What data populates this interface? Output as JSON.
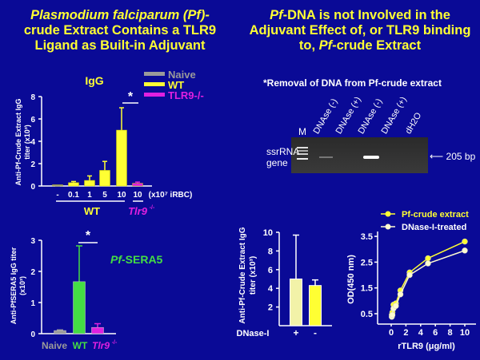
{
  "left_title": {
    "line1": "Plasmodium falciparum (Pf)-",
    "line2": "crude Extract Contains a TLR9",
    "line3": "Ligand as Built-in Adjuvant"
  },
  "right_title": {
    "line1_italic": "Pf",
    "line1": "-DNA is not Involved in the",
    "line2": "Adjuvant Effect of, or TLR9 binding",
    "line3_pre": "to, ",
    "line3_italic": "Pf",
    "line3": "-crude Extract"
  },
  "gel": {
    "title": "*Removal of DNA from Pf-crude extract",
    "lanes": [
      "M",
      "DNAse (-)",
      "DNAse (+)",
      "DNAse (-)",
      "DNAse (+)",
      "dH2O"
    ],
    "row_label_1": "ssrRNA",
    "row_label_2": "gene",
    "band_label": "205 bp"
  },
  "colors": {
    "bg": "#0a0a96",
    "yellow": "#ffff33",
    "grey": "#9a9a9a",
    "magenta": "#e020e0",
    "green": "#44dd44",
    "light_yellow": "#f2f2a8"
  },
  "chart_data": [
    {
      "type": "bar",
      "title": "IgG",
      "ylabel": "Anti-Pf-Crude Extract IgG titer (x10³)",
      "ylim": [
        0,
        8
      ],
      "yticks": [
        0,
        2,
        4,
        6,
        8
      ],
      "categories": [
        "-",
        "0.1",
        "1",
        "5",
        "10",
        "10"
      ],
      "unit_label": "(x10⁷ iRBC)",
      "values": [
        0.02,
        0.3,
        0.5,
        1.4,
        5.0,
        0.25
      ],
      "errors": [
        0.02,
        0.4,
        0.9,
        2.2,
        7.0,
        0.35
      ],
      "groups": [
        "naive",
        "wt",
        "wt",
        "wt",
        "wt",
        "tlr9"
      ],
      "group_labels": {
        "wt": "WT",
        "tlr9": "Tlr9",
        "tlr9_sup": "-/-"
      },
      "legend": [
        {
          "name": "Naive",
          "color": "#9a9a9a"
        },
        {
          "name": "WT",
          "color": "#ffff33"
        },
        {
          "name": "TLR9-/-",
          "color": "#e020e0"
        }
      ],
      "significance": "*"
    },
    {
      "type": "bar",
      "title": "Pf-SERA5",
      "title_italic": "Pf",
      "title_rest": "-SERA5",
      "ylabel": "Anti-PfSERA5 IgG titer (x10³)",
      "ylim": [
        0,
        3
      ],
      "yticks": [
        0,
        1,
        2,
        3
      ],
      "categories": [
        "Naive",
        "WT",
        "Tlr9"
      ],
      "cat_sup": "-/-",
      "values": [
        0.1,
        1.67,
        0.2
      ],
      "errors": [
        0.12,
        2.82,
        0.32
      ],
      "significance": "*"
    },
    {
      "type": "bar",
      "ylabel_1": "Anti-Pf-Crude Extract IgG",
      "ylabel_2": "titer  (x10³)",
      "ylim": [
        0,
        10
      ],
      "yticks": [
        2,
        4,
        6,
        8,
        10
      ],
      "xlabel": "DNase-I",
      "categories": [
        "+",
        "-"
      ],
      "values": [
        5.0,
        4.3
      ],
      "errors": [
        9.7,
        4.9
      ]
    },
    {
      "type": "line",
      "xlabel": "rTLR9 (μg/ml)",
      "ylabel": "OD(450 nm)",
      "xlim": [
        0,
        10
      ],
      "ylim": [
        0.2,
        3.5
      ],
      "xticks": [
        0,
        2,
        4,
        6,
        8,
        10
      ],
      "yticks": [
        0.5,
        1.5,
        2.5,
        3.5
      ],
      "series": [
        {
          "name": "Pf-crude extract",
          "color": "#ffff33",
          "x": [
            0.08,
            0.16,
            0.31,
            0.63,
            1.25,
            2.5,
            5,
            10
          ],
          "y": [
            0.45,
            0.55,
            0.85,
            0.9,
            1.4,
            2.1,
            2.65,
            3.3
          ]
        },
        {
          "name": "DNase-I-treated",
          "color": "#fffbd0",
          "x": [
            0.08,
            0.16,
            0.31,
            0.63,
            1.25,
            2.5,
            5,
            10
          ],
          "y": [
            0.38,
            0.45,
            0.7,
            0.8,
            1.25,
            2.0,
            2.45,
            2.95
          ]
        }
      ]
    }
  ]
}
